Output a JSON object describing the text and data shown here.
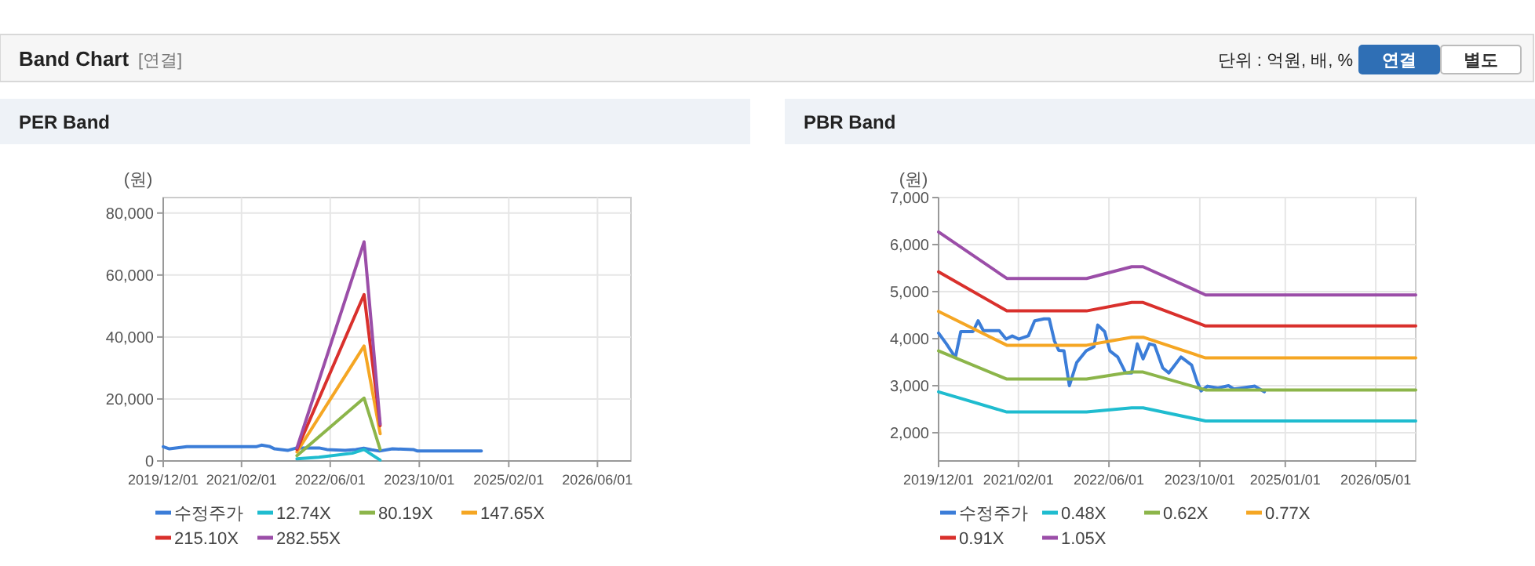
{
  "chart_data": [
    {
      "type": "other",
      "title": "Band Chart",
      "annotations": [
        "[연결]",
        "단위 : 억원, 배, %",
        "연결",
        "별도"
      ]
    },
    {
      "type": "line",
      "title": "PER Band",
      "ylabel": "(원)",
      "grid": true,
      "legend": "bottom",
      "xlim": [
        "2019-12-01",
        "2026-12-01"
      ],
      "xticks": [
        {
          "value": "2019-12-01",
          "label": "2019/12/01"
        },
        {
          "value": "2021-02-01",
          "label": "2021/02/01"
        },
        {
          "value": "2022-06-01",
          "label": "2022/06/01"
        },
        {
          "value": "2023-10-01",
          "label": "2023/10/01"
        },
        {
          "value": "2025-02-01",
          "label": "2025/02/01"
        },
        {
          "value": "2026-06-01",
          "label": "2026/06/01"
        }
      ],
      "ylim": [
        0,
        85000
      ],
      "yticks": [
        0,
        {
          "value": 20000,
          "label": "20,000"
        },
        {
          "value": 40000,
          "label": "40,000"
        },
        {
          "value": 60000,
          "label": "60,000"
        },
        {
          "value": 80000,
          "label": "80,000"
        }
      ],
      "series": [
        {
          "name": "수정주가",
          "color": "#3b7dd8",
          "x": [
            "2019-12-01",
            "2020-01-04",
            "2020-04-08",
            "2021-04-22",
            "2021-05-21",
            "2021-07-03",
            "2021-08-01",
            "2021-10-11",
            "2021-11-22",
            "2022-01-04",
            "2022-04-01",
            "2022-05-14",
            "2022-08-22",
            "2022-10-19",
            "2022-12-01",
            "2023-01-13",
            "2023-02-25",
            "2023-05-07",
            "2023-08-29",
            "2023-09-21",
            "2024-09-04"
          ],
          "values": [
            4600,
            3900,
            4600,
            4600,
            5100,
            4700,
            3900,
            3400,
            4100,
            4200,
            4200,
            3700,
            3400,
            3700,
            4100,
            3600,
            3200,
            3900,
            3700,
            3200,
            3200
          ]
        },
        {
          "name": "12.74X",
          "color": "#1fbccf",
          "x": [
            "2021-12-01",
            "2022-03-31",
            "2022-09-30",
            "2022-12-03",
            "2023-01-15",
            "2023-03-01"
          ],
          "values": [
            700,
            1200,
            2500,
            3700,
            2000,
            300
          ]
        },
        {
          "name": "80.19X",
          "color": "#8cb54a",
          "x": [
            "2021-12-01",
            "2022-12-03",
            "2023-03-01"
          ],
          "values": [
            1700,
            20300,
            3700
          ]
        },
        {
          "name": "147.65X",
          "color": "#f5a623",
          "x": [
            "2021-12-01",
            "2022-12-03",
            "2023-03-01"
          ],
          "values": [
            2900,
            37100,
            8800
          ]
        },
        {
          "name": "215.10X",
          "color": "#d9302c",
          "x": [
            "2021-12-01",
            "2022-12-03",
            "2023-03-01"
          ],
          "values": [
            3700,
            53700,
            11400
          ]
        },
        {
          "name": "282.55X",
          "color": "#9b4ea8",
          "x": [
            "2021-12-01",
            "2022-12-03",
            "2023-03-01"
          ],
          "values": [
            4200,
            70700,
            11900
          ]
        }
      ]
    },
    {
      "type": "line",
      "title": "PBR Band",
      "ylabel": "(원)",
      "grid": true,
      "legend": "bottom",
      "xlim": [
        "2019-12-01",
        "2026-12-01"
      ],
      "xticks": [
        {
          "value": "2019-12-01",
          "label": "2019/12/01"
        },
        {
          "value": "2021-02-01",
          "label": "2021/02/01"
        },
        {
          "value": "2022-06-01",
          "label": "2022/06/01"
        },
        {
          "value": "2023-10-01",
          "label": "2023/10/01"
        },
        {
          "value": "2025-01-01",
          "label": "2025/01/01"
        },
        {
          "value": "2026-05-01",
          "label": "2026/05/01"
        }
      ],
      "ylim": [
        1400,
        7000
      ],
      "yticks": [
        {
          "value": 2000,
          "label": "2,000"
        },
        {
          "value": 3000,
          "label": "3,000"
        },
        {
          "value": 4000,
          "label": "4,000"
        },
        {
          "value": 5000,
          "label": "5,000"
        },
        {
          "value": 6000,
          "label": "6,000"
        },
        {
          "value": 7000,
          "label": "7,000"
        }
      ],
      "series": [
        {
          "name": "수정주가",
          "color": "#3b7dd8",
          "x": [
            "2019-12-01",
            "2020-01-12",
            "2020-02-29",
            "2020-03-29",
            "2020-06-02",
            "2020-06-30",
            "2020-07-28",
            "2020-10-21",
            "2020-11-27",
            "2020-12-30",
            "2021-02-02",
            "2021-03-26",
            "2021-04-29",
            "2021-06-18",
            "2021-07-16",
            "2021-08-13",
            "2021-09-05",
            "2021-10-03",
            "2021-11-01",
            "2021-12-10",
            "2022-01-30",
            "2022-03-13",
            "2022-04-02",
            "2022-05-09",
            "2022-06-06",
            "2022-07-18",
            "2022-08-30",
            "2022-09-30",
            "2022-10-31",
            "2022-12-01",
            "2023-01-04",
            "2023-02-01",
            "2023-03-16",
            "2023-04-18",
            "2023-06-22",
            "2023-08-18",
            "2023-09-15",
            "2023-10-08",
            "2023-11-11",
            "2024-01-06",
            "2024-03-03",
            "2024-03-31",
            "2024-05-12",
            "2024-07-22",
            "2024-09-11"
          ],
          "values": [
            4120,
            3890,
            3600,
            4150,
            4150,
            4380,
            4170,
            4170,
            3990,
            4060,
            3990,
            4060,
            4380,
            4420,
            4420,
            3950,
            3750,
            3740,
            3000,
            3490,
            3740,
            3830,
            4290,
            4150,
            3740,
            3610,
            3270,
            3270,
            3890,
            3570,
            3890,
            3860,
            3380,
            3270,
            3610,
            3440,
            3100,
            2890,
            2990,
            2950,
            3000,
            2930,
            2950,
            2990,
            2870
          ]
        },
        {
          "name": "0.48X",
          "color": "#1fbccf",
          "x": [
            "2019-12-01",
            "2020-12-01",
            "2022-02-01",
            "2022-10-01",
            "2022-12-01",
            "2023-11-01",
            "2026-12-01"
          ],
          "values": [
            2870,
            2440,
            2440,
            2530,
            2530,
            2250,
            2250
          ]
        },
        {
          "name": "0.62X",
          "color": "#8cb54a",
          "x": [
            "2019-12-01",
            "2020-12-01",
            "2022-02-01",
            "2022-10-01",
            "2022-12-01",
            "2023-11-01",
            "2026-12-01"
          ],
          "values": [
            3740,
            3140,
            3140,
            3290,
            3290,
            2910,
            2910
          ]
        },
        {
          "name": "0.77X",
          "color": "#f5a623",
          "x": [
            "2019-12-01",
            "2020-12-01",
            "2022-02-01",
            "2022-10-01",
            "2022-12-01",
            "2023-11-01",
            "2026-12-01"
          ],
          "values": [
            4580,
            3860,
            3860,
            4030,
            4030,
            3590,
            3590
          ]
        },
        {
          "name": "0.91X",
          "color": "#d9302c",
          "x": [
            "2019-12-01",
            "2020-12-01",
            "2022-02-01",
            "2022-10-01",
            "2022-12-01",
            "2023-11-01",
            "2026-12-01"
          ],
          "values": [
            5420,
            4590,
            4590,
            4770,
            4770,
            4270,
            4270
          ]
        },
        {
          "name": "1.05X",
          "color": "#9b4ea8",
          "x": [
            "2019-12-01",
            "2020-12-01",
            "2022-02-01",
            "2022-10-01",
            "2022-12-01",
            "2023-11-01",
            "2026-12-01"
          ],
          "values": [
            6270,
            5280,
            5280,
            5530,
            5530,
            4930,
            4930
          ]
        }
      ]
    }
  ]
}
